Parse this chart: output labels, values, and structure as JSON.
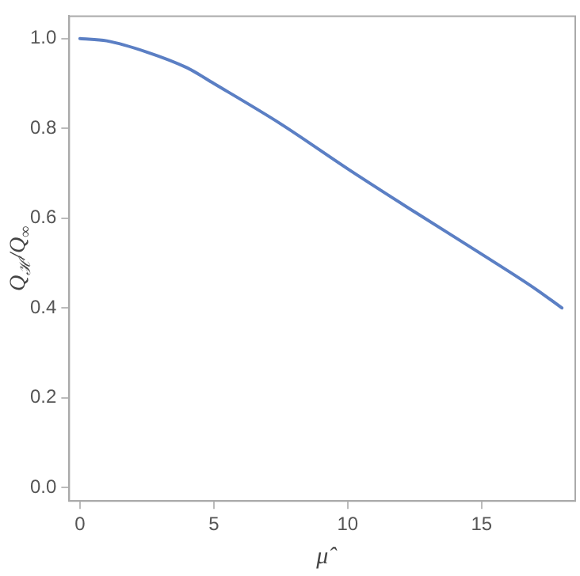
{
  "chart_data": {
    "type": "line",
    "xlabel": "μ̂",
    "ylabel": "Q$_{ℋ}$/Q$_{∞}$",
    "series": [
      {
        "color": "#5b7fc4",
        "x": [
          0,
          1,
          2.5,
          4,
          5,
          7.5,
          10,
          12.5,
          15,
          17,
          18
        ],
        "values": [
          1.0,
          0.995,
          0.97,
          0.935,
          0.9,
          0.81,
          0.71,
          0.614,
          0.52,
          0.443,
          0.4
        ]
      }
    ],
    "xlim": [
      -0.4,
      18.5
    ],
    "xticks": [
      0,
      5,
      10,
      15
    ],
    "ylim": [
      -0.03,
      1.05
    ],
    "yticks": [
      {
        "value": 0,
        "label": "0.0"
      },
      0.2,
      0.4,
      0.6,
      0.8,
      {
        "value": 1,
        "label": "1.0"
      }
    ],
    "grid": false,
    "legend": false,
    "marker": "none",
    "line_style": "solid"
  }
}
